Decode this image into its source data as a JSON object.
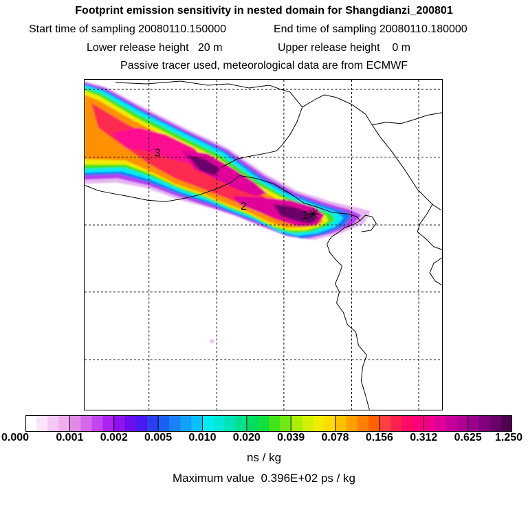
{
  "header": {
    "title": "Footprint emission sensitivity in nested domain for Shangdianzi_200801",
    "start_time": "Start time of sampling 20080110.150000",
    "end_time": "End time of sampling 20080110.180000",
    "lower_release": "Lower release height   20 m",
    "upper_release": "Upper release height    0 m",
    "tracer_info": "Passive tracer used, meteorological data are from ECMWF"
  },
  "map": {
    "labels": [
      {
        "id": "label-1",
        "text": "1"
      },
      {
        "id": "label-2",
        "text": "2"
      },
      {
        "id": "label-3",
        "text": "3"
      }
    ],
    "receptor_marker": "star-marker"
  },
  "colorbar": {
    "ticks": [
      "0.000",
      "0.001",
      "0.002",
      "0.005",
      "0.010",
      "0.020",
      "0.039",
      "0.078",
      "0.156",
      "0.312",
      "0.625",
      "1.250"
    ],
    "unit": "ns / kg",
    "colors": [
      "#ffffff",
      "#fbe3fb",
      "#f5c8f5",
      "#efaeef",
      "#e38ae8",
      "#d567ec",
      "#c246f0",
      "#ac22f2",
      "#8d14f0",
      "#6b0ef0",
      "#4a18f0",
      "#2b40f2",
      "#1a60f4",
      "#1a80f6",
      "#12a0f8",
      "#08c0fa",
      "#00ecf5",
      "#00e8d8",
      "#00e4b4",
      "#00e08c",
      "#00de60",
      "#10e040",
      "#40e418",
      "#70ea10",
      "#a8f000",
      "#d0f000",
      "#f0ec00",
      "#ffdc00",
      "#ffc000",
      "#ffa000",
      "#ff8000",
      "#ff6000",
      "#ff4040",
      "#ff2050",
      "#ff0a64",
      "#ff0078",
      "#f0008a",
      "#e0009a",
      "#c8009a",
      "#b00094",
      "#98008c",
      "#80007c",
      "#6a006a",
      "#500050"
    ]
  },
  "max_value": "Maximum value  0.396E+02 ps / kg"
}
